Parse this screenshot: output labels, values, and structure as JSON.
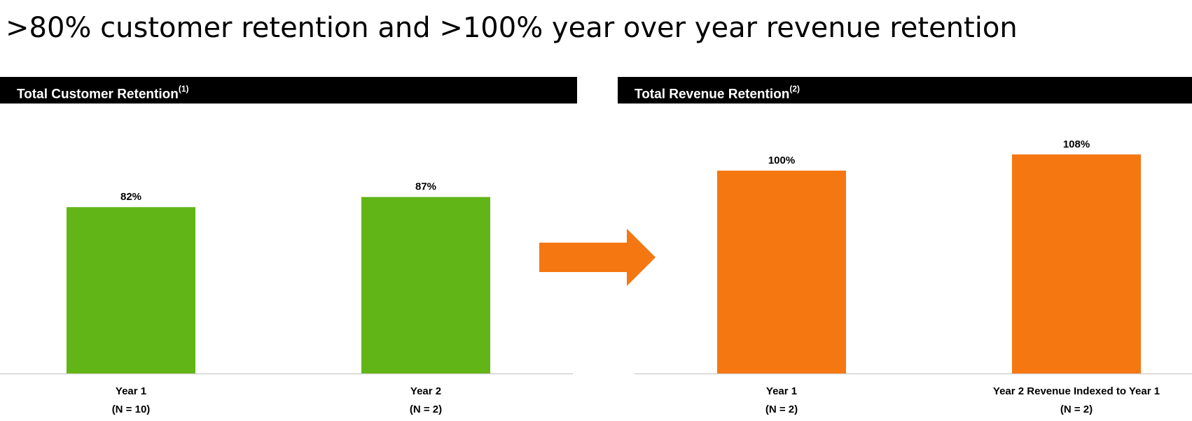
{
  "page": {
    "title": ">80% customer retention and >100% year over year revenue retention"
  },
  "colors": {
    "customer_bar": "#62B516",
    "revenue_bar": "#F57711",
    "arrow": "#F57711",
    "header_bg": "#000000",
    "axis": "#D0D0D0"
  },
  "icons": {
    "arrow": "right-arrow-icon"
  },
  "chart_data": [
    {
      "type": "bar",
      "title": "Total Customer Retention",
      "title_footnote": "(1)",
      "categories": [
        "Year 1",
        "Year 2"
      ],
      "category_sublabels": [
        "(N = 10)",
        "(N = 2)"
      ],
      "values": [
        82,
        87
      ],
      "value_labels": [
        "82%",
        "87%"
      ],
      "ylim": [
        0,
        100
      ],
      "grid": false,
      "legend": "none"
    },
    {
      "type": "bar",
      "title": "Total Revenue Retention",
      "title_footnote": "(2)",
      "categories": [
        "Year 1",
        "Year 2 Revenue Indexed to Year 1"
      ],
      "category_sublabels": [
        "(N = 2)",
        "(N = 2)"
      ],
      "values": [
        100,
        108
      ],
      "value_labels": [
        "100%",
        "108%"
      ],
      "ylim": [
        0,
        100
      ],
      "grid": false,
      "legend": "none"
    }
  ]
}
